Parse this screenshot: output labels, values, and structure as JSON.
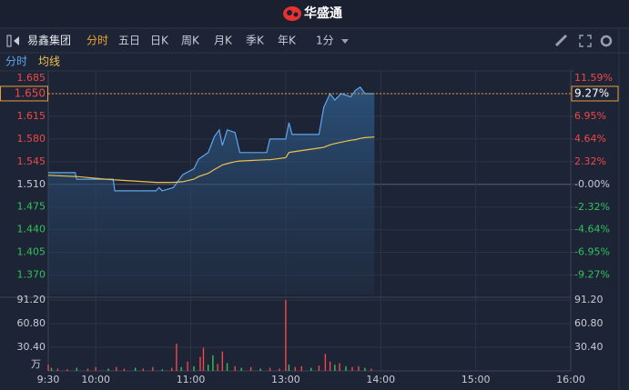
{
  "app": {
    "logo": "华盛通"
  },
  "toolbar": {
    "stock": "易鑫集团",
    "tabs": [
      "分时",
      "五日",
      "日K",
      "周K",
      "月K",
      "季K",
      "年K"
    ],
    "active_tab": 0,
    "interval": "1分"
  },
  "chart_data": [
    {
      "type": "line",
      "x": [
        0,
        17,
        18,
        41,
        42,
        68,
        70,
        72,
        79,
        85,
        92,
        95,
        101,
        105,
        108,
        110,
        113,
        118,
        121,
        138,
        140,
        150,
        152,
        154,
        171,
        174,
        178,
        181,
        185,
        191,
        194,
        197,
        200,
        206
      ],
      "series": [
        {
          "name": "分时",
          "color": "#5ea6ee",
          "values": [
            1.528,
            1.528,
            1.518,
            1.518,
            1.5,
            1.5,
            1.505,
            1.5,
            1.505,
            1.525,
            1.534,
            1.549,
            1.559,
            1.584,
            1.594,
            1.57,
            1.594,
            1.59,
            1.559,
            1.559,
            1.58,
            1.58,
            1.605,
            1.587,
            1.587,
            1.629,
            1.65,
            1.64,
            1.65,
            1.645,
            1.655,
            1.66,
            1.65,
            1.65
          ]
        },
        {
          "name": "均线",
          "color": "#f0c24a",
          "values": [
            1.524,
            1.522,
            1.522,
            1.517,
            1.517,
            1.513,
            1.513,
            1.513,
            1.513,
            1.514,
            1.518,
            1.522,
            1.527,
            1.533,
            1.537,
            1.54,
            1.542,
            1.545,
            1.546,
            1.548,
            1.548,
            1.551,
            1.559,
            1.56,
            1.566,
            1.567,
            1.571,
            1.573,
            1.575,
            1.578,
            1.579,
            1.581,
            1.582,
            1.583
          ]
        }
      ],
      "xlim": [
        0,
        330
      ],
      "ylim": [
        1.34,
        1.685
      ],
      "yticks": [
        1.685,
        {
          "value": 1.65,
          "label": "1.650"
        },
        1.615,
        {
          "value": 1.58,
          "label": "1.580"
        },
        1.545,
        {
          "value": 1.51,
          "label": "1.510"
        },
        1.475,
        {
          "value": 1.44,
          "label": "1.440"
        },
        1.405,
        {
          "value": 1.37,
          "label": "1.370"
        }
      ],
      "y2lim": [
        -11.26,
        11.59
      ],
      "y2ticks": [
        {
          "value": 11.59,
          "label": "11.59%"
        },
        {
          "value": 9.27,
          "label": "9.27%"
        },
        {
          "value": 6.95,
          "label": "6.95%"
        },
        {
          "value": 4.64,
          "label": "4.64%"
        },
        {
          "value": 2.32,
          "label": "2.32%"
        },
        {
          "value": 0,
          "label": "-0.00%"
        },
        {
          "value": -2.32,
          "label": "-2.32%"
        },
        {
          "value": -4.64,
          "label": "-4.64%"
        },
        {
          "value": -6.95,
          "label": "-6.95%"
        },
        {
          "value": -9.27,
          "label": "-9.27%"
        }
      ],
      "last_price": {
        "value": 1.65,
        "label": "1.650"
      },
      "last_change": {
        "value": 9.27,
        "label": "9.27%"
      },
      "up_color": "#f04848",
      "down_color": "#34c05a",
      "flat_color": "#c8ccd4",
      "grid": true
    },
    {
      "type": "bar",
      "x": [
        0,
        2,
        6,
        12,
        18,
        25,
        30,
        38,
        43,
        48,
        55,
        60,
        66,
        72,
        78,
        81,
        84,
        88,
        92,
        96,
        98,
        101,
        104,
        107,
        110,
        113,
        118,
        122,
        128,
        134,
        140,
        146,
        150,
        152,
        156,
        160,
        166,
        171,
        175,
        178,
        181,
        184,
        188,
        192,
        196,
        200,
        204
      ],
      "values": [
        8,
        4,
        3,
        2,
        4,
        3,
        5,
        3,
        5,
        3,
        4,
        3,
        5,
        2,
        4,
        35,
        5,
        12,
        6,
        18,
        30,
        8,
        20,
        9,
        25,
        10,
        6,
        4,
        5,
        3,
        4,
        3,
        91,
        8,
        5,
        6,
        4,
        7,
        22,
        12,
        8,
        10,
        6,
        5,
        6,
        4,
        3
      ],
      "colors": [
        "#f04848",
        "#34c05a",
        "#f04848",
        "#f04848",
        "#34c05a",
        "#f04848",
        "#f04848",
        "#34c05a",
        "#f04848",
        "#f04848",
        "#34c05a",
        "#f04848",
        "#f04848",
        "#34c05a",
        "#f04848",
        "#f04848",
        "#34c05a",
        "#f04848",
        "#34c05a",
        "#f04848",
        "#f04848",
        "#34c05a",
        "#34c05a",
        "#f04848",
        "#f04848",
        "#34c05a",
        "#f04848",
        "#34c05a",
        "#f04848",
        "#34c05a",
        "#f04848",
        "#f04848",
        "#f04848",
        "#34c05a",
        "#f04848",
        "#f04848",
        "#34c05a",
        "#f04848",
        "#f04848",
        "#f04848",
        "#34c05a",
        "#f04848",
        "#34c05a",
        "#f04848",
        "#f04848",
        "#34c05a",
        "#f04848"
      ],
      "xlim": [
        0,
        330
      ],
      "xticks": [
        {
          "value": 0,
          "label": "9:30"
        },
        {
          "value": 30,
          "label": "10:00"
        },
        {
          "value": 90,
          "label": "11:00"
        },
        {
          "value": 150,
          "label": "13:00"
        },
        {
          "value": 210,
          "label": "14:00"
        },
        {
          "value": 270,
          "label": "15:00"
        },
        {
          "value": 330,
          "label": "16:00"
        }
      ],
      "ylim": [
        0,
        91.2
      ],
      "yticks": [
        {
          "value": 91.2,
          "label": "91.20"
        },
        {
          "value": 60.8,
          "label": "60.80"
        },
        {
          "value": 30.4,
          "label": "30.40"
        }
      ],
      "unit": "万"
    }
  ]
}
